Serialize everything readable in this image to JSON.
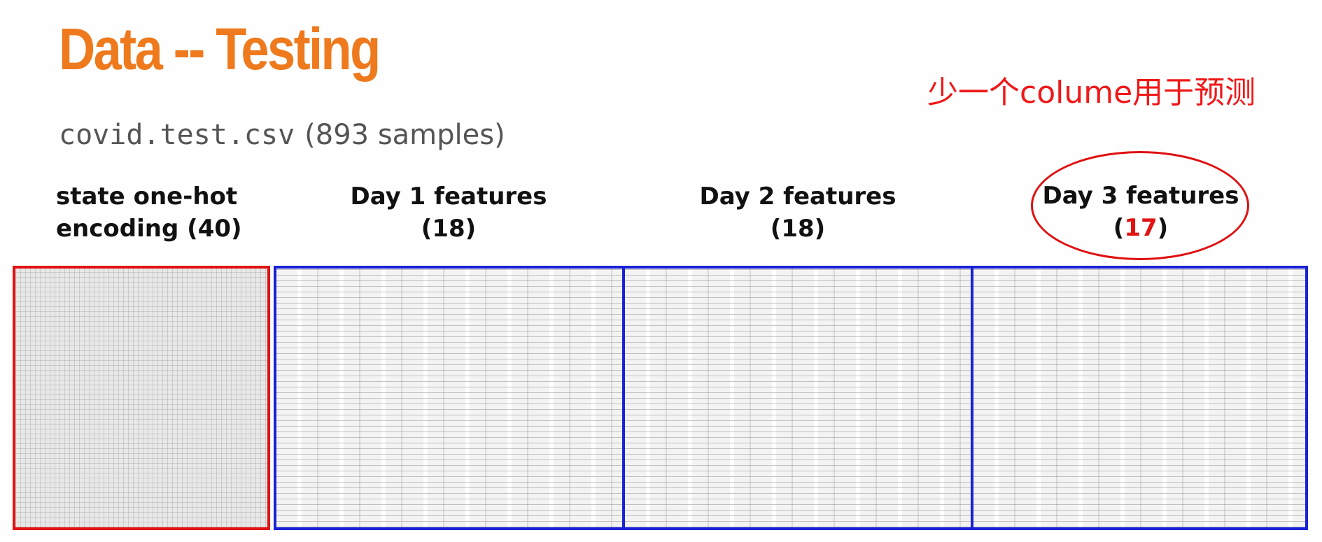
{
  "title": "Data -- Testing",
  "note": "少一个colume用于预测",
  "subtitle": {
    "filename": "covid.test.csv",
    "count_text": "(893 samples)"
  },
  "groups": [
    {
      "line1": "state one-hot",
      "line2": "encoding (40)",
      "highlight": false
    },
    {
      "line1": "Day 1 features",
      "line2_open": "(",
      "line2_num": "18",
      "line2_close": ")",
      "highlight": false
    },
    {
      "line1": "Day 2 features",
      "line2_open": "(",
      "line2_num": "18",
      "line2_close": ")",
      "highlight": false
    },
    {
      "line1": "Day 3 features",
      "line2_open": "(",
      "line2_num": "17",
      "line2_close": ")",
      "highlight": true
    }
  ],
  "colors": {
    "title": "#ee7a1d",
    "note": "#f01818",
    "onehot_border": "#e01414",
    "feature_border": "#1a22d6"
  }
}
